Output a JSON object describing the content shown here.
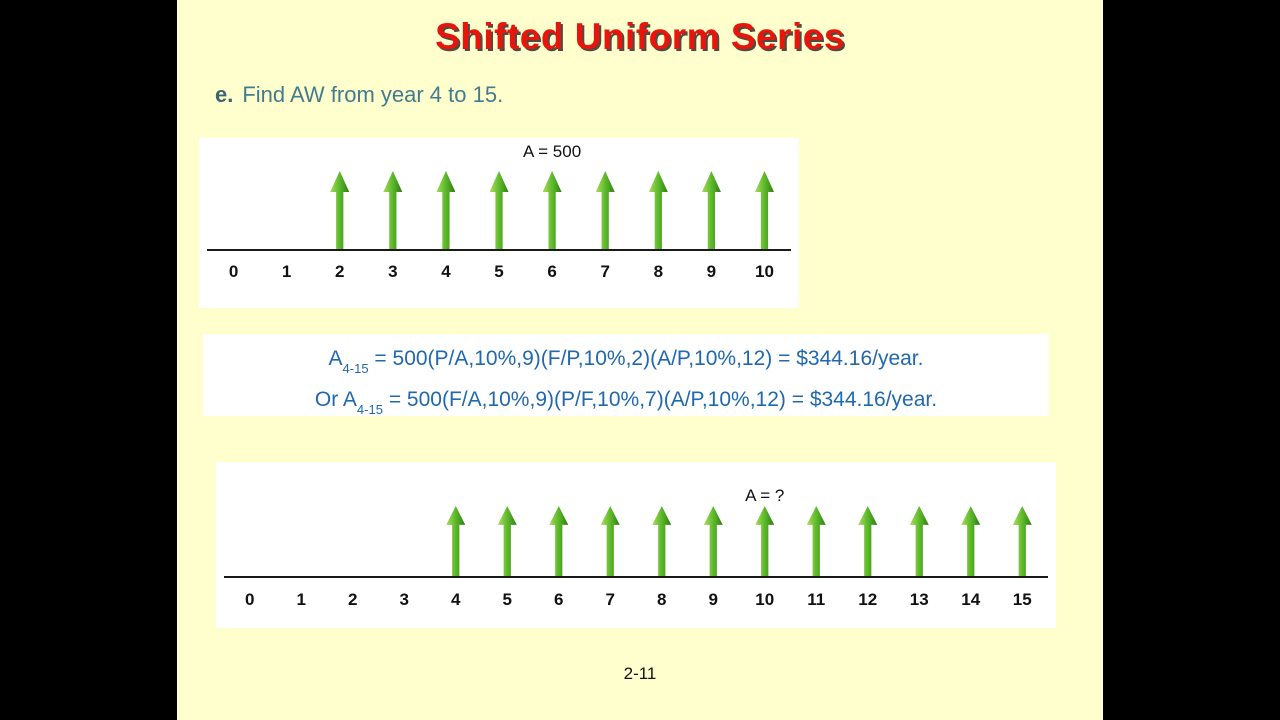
{
  "slide": {
    "title": "Shifted Uniform Series",
    "statement": {
      "bullet": "e.",
      "text": "Find AW from year 4 to 15."
    },
    "page_number": "2-11"
  },
  "colors": {
    "slide_bg": "#FFFFCE",
    "title_red": "#E8150D",
    "stmt_bullet": "#3D6470",
    "stmt_text": "#417C8E",
    "eq_blue": "#2068B0",
    "arrow_light": "#A9DB5E",
    "arrow_mid": "#57B527",
    "arrow_dark": "#2F7D12",
    "axis": "#1A1A1A"
  },
  "diagram_top": {
    "amount_label": "A = 500",
    "label_year": 6,
    "years": [
      "0",
      "1",
      "2",
      "3",
      "4",
      "5",
      "6",
      "7",
      "8",
      "9",
      "10"
    ],
    "arrow_years": [
      2,
      3,
      4,
      5,
      6,
      7,
      8,
      9,
      10
    ]
  },
  "equations": {
    "line1": {
      "prefix": "A",
      "sub": "4-15",
      "rest": " = 500(P/A,10%,9)(F/P,10%,2)(A/P,10%,12) = $344.16/year."
    },
    "line2": {
      "prefix": "Or A",
      "sub": "4-15",
      "rest": " = 500(F/A,10%,9)(P/F,10%,7)(A/P,10%,12) = $344.16/year."
    }
  },
  "diagram_bottom": {
    "amount_label": "A = ?",
    "label_year": 10,
    "years": [
      "0",
      "1",
      "2",
      "3",
      "4",
      "5",
      "6",
      "7",
      "8",
      "9",
      "10",
      "11",
      "12",
      "13",
      "14",
      "15"
    ],
    "arrow_years": [
      4,
      5,
      6,
      7,
      8,
      9,
      10,
      11,
      12,
      13,
      14,
      15
    ]
  }
}
